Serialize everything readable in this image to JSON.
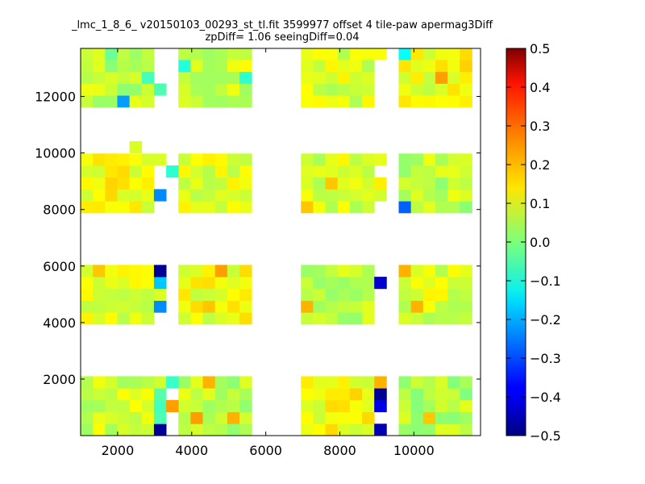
{
  "chart_data": {
    "type": "heatmap",
    "title": "_lmc_1_8_6_ v20150103_00293_st_tl.fit 3599977 offset 4 tile-paw apermag3Diff",
    "subtitle": "zpDiff= 1.06 seeingDiff=0.04",
    "xlim": [
      1000,
      11800
    ],
    "ylim": [
      0,
      13700
    ],
    "x_ticks": [
      "2000",
      "4000",
      "6000",
      "8000",
      "10000"
    ],
    "y_ticks": [
      "2000",
      "4000",
      "6000",
      "8000",
      "10000",
      "12000"
    ],
    "colorbar": {
      "range": [
        -0.5,
        0.5
      ],
      "ticks": [
        "0.5",
        "0.4",
        "0.3",
        "0.2",
        "0.1",
        "0.0",
        "−0.1",
        "−0.2",
        "−0.3",
        "−0.4",
        "−0.5"
      ],
      "colormap": "jet"
    },
    "cell_size": [
      330,
      420
    ],
    "detector_columns": [
      {
        "x_start": 1000,
        "n": 6
      },
      {
        "x_start": 3640,
        "n": 6
      },
      {
        "x_start": 6950,
        "n": 6
      },
      {
        "x_start": 9590,
        "n": 6
      }
    ],
    "detector_rows": [
      {
        "y_start": 0,
        "n": 5
      },
      {
        "y_start": 3940,
        "n": 5
      },
      {
        "y_start": 7880,
        "n": 5
      },
      {
        "y_start": 11620,
        "n": 5
      }
    ],
    "base_values": [
      [
        0.08,
        0.06,
        0.12,
        0.05,
        0.04,
        0.07
      ],
      [
        0.1,
        0.11,
        0.07,
        0.09,
        0.03,
        0.08
      ],
      [
        0.12,
        0.1,
        0.09,
        0.06,
        0.08,
        0.07
      ],
      [
        0.06,
        0.08,
        0.09,
        0.11,
        0.05,
        0.06
      ]
    ],
    "extra_cells": [
      {
        "x": 2980,
        "y": 0,
        "value": -0.48
      },
      {
        "x": 2980,
        "y": 420,
        "value": -0.05
      },
      {
        "x": 2980,
        "y": 840,
        "value": -0.06
      },
      {
        "x": 2980,
        "y": 1260,
        "value": -0.04
      },
      {
        "x": 2980,
        "y": 1680,
        "value": 0.08
      },
      {
        "x": 2980,
        "y": 4360,
        "value": -0.24
      },
      {
        "x": 2980,
        "y": 4780,
        "value": 0.09
      },
      {
        "x": 2980,
        "y": 5200,
        "value": -0.18
      },
      {
        "x": 2980,
        "y": 5620,
        "value": -0.48
      },
      {
        "x": 2980,
        "y": 8300,
        "value": -0.24
      },
      {
        "x": 2980,
        "y": 9560,
        "value": 0.09
      },
      {
        "x": 2980,
        "y": 12040,
        "value": -0.05
      },
      {
        "x": 3310,
        "y": 840,
        "value": 0.22
      },
      {
        "x": 3310,
        "y": 1680,
        "value": -0.07
      },
      {
        "x": 3310,
        "y": 9140,
        "value": -0.08
      },
      {
        "x": 2320,
        "y": 10000,
        "value": 0.09
      },
      {
        "x": 8930,
        "y": 0,
        "value": -0.45
      },
      {
        "x": 8930,
        "y": 840,
        "value": -0.4
      },
      {
        "x": 8930,
        "y": 1260,
        "value": -0.48
      },
      {
        "x": 8930,
        "y": 1680,
        "value": 0.2
      },
      {
        "x": 8930,
        "y": 5200,
        "value": -0.42
      },
      {
        "x": 8930,
        "y": 8300,
        "value": 0.08
      },
      {
        "x": 8930,
        "y": 8720,
        "value": 0.14
      },
      {
        "x": 8930,
        "y": 9560,
        "value": 0.1
      },
      {
        "x": 8930,
        "y": 13300,
        "value": 0.12
      },
      {
        "x": 9590,
        "y": 7880,
        "value": -0.28
      },
      {
        "x": 9590,
        "y": 13300,
        "value": -0.12
      },
      {
        "x": 9590,
        "y": 5620,
        "value": 0.2
      }
    ],
    "overrides": [
      {
        "x": 1990,
        "y": 11620,
        "value": -0.22
      },
      {
        "x": 1660,
        "y": 13300,
        "value": -0.02
      },
      {
        "x": 4630,
        "y": 5620,
        "value": 0.22
      },
      {
        "x": 4960,
        "y": 420,
        "value": 0.2
      },
      {
        "x": 4300,
        "y": 1680,
        "value": 0.2
      },
      {
        "x": 3970,
        "y": 420,
        "value": 0.22
      },
      {
        "x": 4300,
        "y": 4360,
        "value": 0.18
      },
      {
        "x": 6950,
        "y": 4360,
        "value": 0.2
      },
      {
        "x": 6950,
        "y": 7880,
        "value": 0.18
      },
      {
        "x": 7610,
        "y": 8720,
        "value": 0.18
      },
      {
        "x": 10580,
        "y": 12460,
        "value": 0.22
      },
      {
        "x": 11240,
        "y": 12880,
        "value": 0.17
      },
      {
        "x": 10250,
        "y": 420,
        "value": 0.18
      },
      {
        "x": 9920,
        "y": 4360,
        "value": 0.2
      },
      {
        "x": 2650,
        "y": 12460,
        "value": -0.06
      },
      {
        "x": 5290,
        "y": 12460,
        "value": -0.08
      },
      {
        "x": 3640,
        "y": 12880,
        "value": -0.09
      },
      {
        "x": 1330,
        "y": 5620,
        "value": 0.18
      }
    ]
  }
}
